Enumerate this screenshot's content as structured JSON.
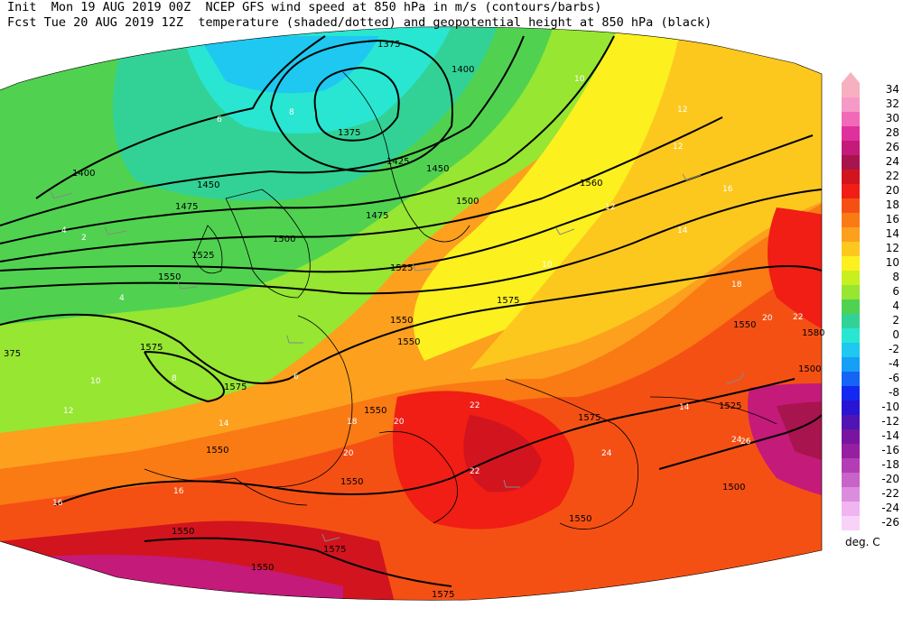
{
  "header": {
    "line1_left": "Init  Mon 19 AUG 2019 00Z",
    "line1_right": "NCEP GFS wind speed at 850 hPa in m/s (contours/barbs)",
    "line2_left": "Fcst Tue 20 AUG 2019 12Z",
    "line2_right": "temperature (shaded/dotted) and geopotential height at 850 hPa (black)"
  },
  "legend": {
    "units": "deg. C",
    "levels": [
      {
        "label": "34",
        "color": "#f7b0c0"
      },
      {
        "label": "32",
        "color": "#f59ac6"
      },
      {
        "label": "30",
        "color": "#f06ab8"
      },
      {
        "label": "28",
        "color": "#e0309e"
      },
      {
        "label": "26",
        "color": "#c41a7a"
      },
      {
        "label": "24",
        "color": "#a8144e"
      },
      {
        "label": "22",
        "color": "#d2141e"
      },
      {
        "label": "20",
        "color": "#f01e14"
      },
      {
        "label": "18",
        "color": "#f55014"
      },
      {
        "label": "16",
        "color": "#fa7a14"
      },
      {
        "label": "14",
        "color": "#fca01e"
      },
      {
        "label": "12",
        "color": "#fcc81e"
      },
      {
        "label": "10",
        "color": "#fcf01e"
      },
      {
        "label": "8",
        "color": "#c8f01e"
      },
      {
        "label": "6",
        "color": "#96e632"
      },
      {
        "label": "4",
        "color": "#50d250"
      },
      {
        "label": "2",
        "color": "#32d296"
      },
      {
        "label": "0",
        "color": "#28e6d2"
      },
      {
        "label": "-2",
        "color": "#1ec8f0"
      },
      {
        "label": "-4",
        "color": "#14a0f5"
      },
      {
        "label": "-6",
        "color": "#1464f5"
      },
      {
        "label": "-8",
        "color": "#1428f0"
      },
      {
        "label": "-10",
        "color": "#2814d2"
      },
      {
        "label": "-12",
        "color": "#5014b4"
      },
      {
        "label": "-14",
        "color": "#7814a0"
      },
      {
        "label": "-16",
        "color": "#961ea0"
      },
      {
        "label": "-18",
        "color": "#b43cb4"
      },
      {
        "label": "-20",
        "color": "#c864c8"
      },
      {
        "label": "-22",
        "color": "#dc8cdc"
      },
      {
        "label": "-24",
        "color": "#f0b4f0"
      },
      {
        "label": "-26",
        "color": "#f8d2f8"
      }
    ]
  },
  "height_labels": [
    {
      "t": "1375"
    },
    {
      "t": "1375"
    },
    {
      "t": "1400"
    },
    {
      "t": "1400"
    },
    {
      "t": "1425"
    },
    {
      "t": "1450"
    },
    {
      "t": "1450"
    },
    {
      "t": "1475"
    },
    {
      "t": "1475"
    },
    {
      "t": "1500"
    },
    {
      "t": "1500"
    },
    {
      "t": "1525"
    },
    {
      "t": "1525"
    },
    {
      "t": "1550"
    },
    {
      "t": "1550"
    },
    {
      "t": "1550"
    },
    {
      "t": "1550"
    },
    {
      "t": "1550"
    },
    {
      "t": "1550"
    },
    {
      "t": "1550"
    },
    {
      "t": "1550"
    },
    {
      "t": "1575"
    },
    {
      "t": "1575"
    },
    {
      "t": "1575"
    },
    {
      "t": "1575"
    },
    {
      "t": "1575"
    },
    {
      "t": "1575"
    },
    {
      "t": "1560"
    },
    {
      "t": "1525"
    },
    {
      "t": "1500"
    },
    {
      "t": "1500"
    },
    {
      "t": "1580"
    },
    {
      "t": "1550"
    },
    {
      "t": "1550"
    },
    {
      "t": "375"
    }
  ],
  "temp_labels": [
    {
      "t": "12"
    },
    {
      "t": "12"
    },
    {
      "t": "10"
    },
    {
      "t": "16"
    },
    {
      "t": "14"
    },
    {
      "t": "12"
    },
    {
      "t": "18"
    },
    {
      "t": "20"
    },
    {
      "t": "22"
    },
    {
      "t": "20"
    },
    {
      "t": "22"
    },
    {
      "t": "24"
    },
    {
      "t": "26"
    },
    {
      "t": "14"
    },
    {
      "t": "10"
    },
    {
      "t": "8"
    },
    {
      "t": "6"
    },
    {
      "t": "4"
    },
    {
      "t": "2"
    },
    {
      "t": "4"
    },
    {
      "t": "6"
    },
    {
      "t": "8"
    },
    {
      "t": "10"
    },
    {
      "t": "12"
    },
    {
      "t": "14"
    },
    {
      "t": "16"
    },
    {
      "t": "18"
    },
    {
      "t": "20"
    },
    {
      "t": "22"
    },
    {
      "t": "24"
    },
    {
      "t": "16"
    }
  ]
}
